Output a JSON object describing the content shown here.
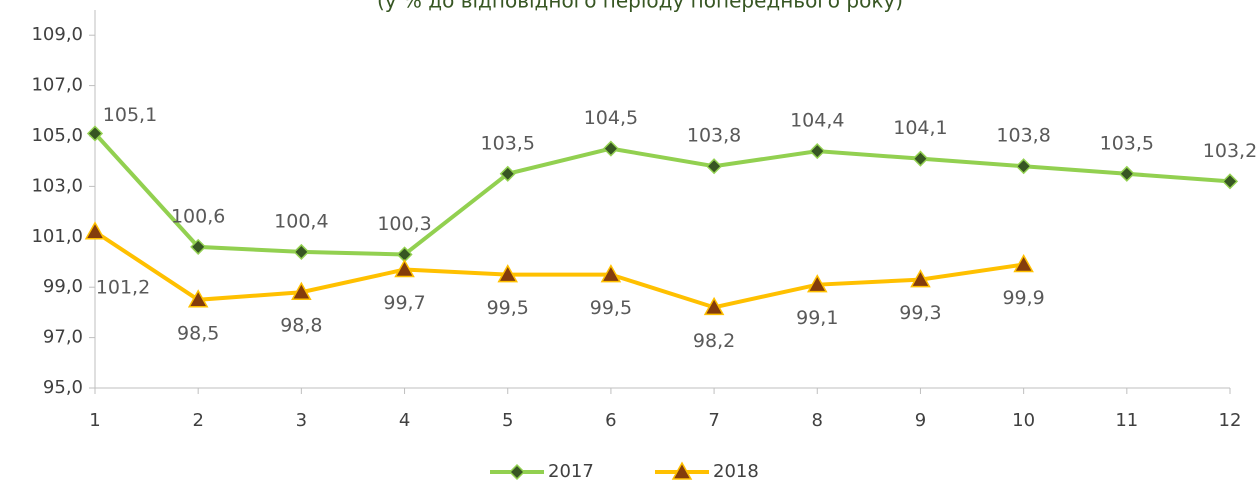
{
  "chart_data": {
    "type": "line",
    "subtitle": "(у % до відповідного періоду попереднього року)",
    "x": [
      1,
      2,
      3,
      4,
      5,
      6,
      7,
      8,
      9,
      10,
      11,
      12
    ],
    "xlim": [
      1,
      12
    ],
    "xticks": [
      1,
      2,
      3,
      4,
      5,
      6,
      7,
      8,
      9,
      10,
      11,
      12
    ],
    "ylim": [
      95,
      110
    ],
    "yticks": [
      {
        "value": 95,
        "label": "95,0"
      },
      {
        "value": 97,
        "label": "97,0"
      },
      {
        "value": 99,
        "label": "99,0"
      },
      {
        "value": 101,
        "label": "101,0"
      },
      {
        "value": 103,
        "label": "103,0"
      },
      {
        "value": 105,
        "label": "105,0"
      },
      {
        "value": 107,
        "label": "107,0"
      },
      {
        "value": 109,
        "label": "109,0"
      }
    ],
    "grid": false,
    "legend": "bottom",
    "series": [
      {
        "name": "2017",
        "color": "#92d050",
        "marker_color": "#375623",
        "marker": "diamond",
        "values": [
          105.1,
          100.6,
          100.4,
          100.3,
          103.5,
          104.5,
          103.8,
          104.4,
          104.1,
          103.8,
          103.5,
          103.2
        ],
        "value_labels": [
          "105,1",
          "100,6",
          "100,4",
          "100,3",
          "103,5",
          "104,5",
          "103,8",
          "104,4",
          "104,1",
          "103,8",
          "103,5",
          "103,2"
        ]
      },
      {
        "name": "2018",
        "color": "#ffc000",
        "marker_color": "#843c0c",
        "marker": "triangle",
        "values": [
          101.2,
          98.5,
          98.8,
          99.7,
          99.5,
          99.5,
          98.2,
          99.1,
          99.3,
          99.9,
          null,
          null
        ],
        "value_labels": [
          "101,2",
          "98,5",
          "98,8",
          "99,7",
          "99,5",
          "99,5",
          "98,2",
          "99,1",
          "99,3",
          "99,9",
          null,
          null
        ]
      }
    ]
  }
}
